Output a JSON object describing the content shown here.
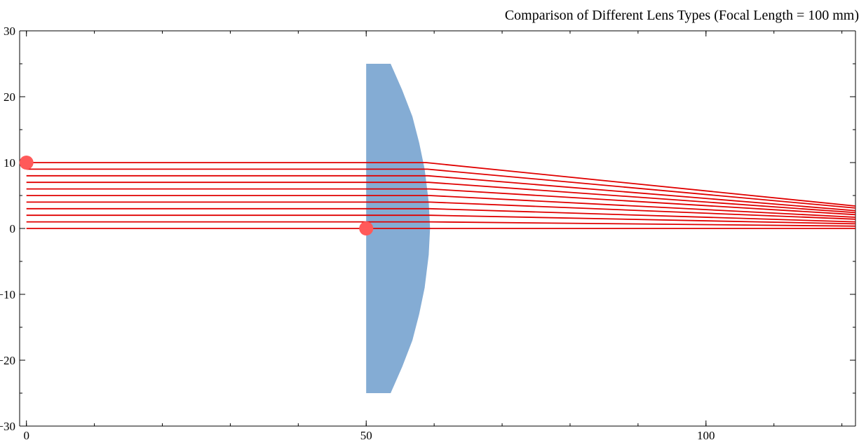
{
  "chart_data": {
    "type": "line",
    "title": "Comparison of Different Lens Types (Focal Length = 100 mm)",
    "xlim": [
      -1,
      122
    ],
    "ylim": [
      -30,
      30
    ],
    "x_ticks": [
      0,
      50,
      100
    ],
    "y_ticks": [
      30,
      20,
      10,
      0,
      -10,
      -20,
      -30
    ],
    "x_minor_step": 10,
    "y_minor_step": 5,
    "grid": false,
    "lens": {
      "color": "#84acd4",
      "outline": [
        [
          50,
          25
        ],
        [
          53.6,
          25
        ],
        [
          55.3,
          21
        ],
        [
          56.8,
          17
        ],
        [
          57.8,
          13
        ],
        [
          58.6,
          9
        ],
        [
          59.2,
          4
        ],
        [
          59.4,
          0
        ],
        [
          59.2,
          -4
        ],
        [
          58.6,
          -9
        ],
        [
          57.8,
          -13
        ],
        [
          56.8,
          -17
        ],
        [
          55.3,
          -21
        ],
        [
          53.6,
          -25
        ],
        [
          50,
          -25
        ]
      ]
    },
    "rays": {
      "color": "#e00000",
      "series": [
        {
          "values": [
            [
              0,
              10
            ],
            [
              58.8,
              10
            ],
            [
              122,
              3.4
            ]
          ]
        },
        {
          "values": [
            [
              0,
              9
            ],
            [
              59.0,
              9
            ],
            [
              122,
              3.1
            ]
          ]
        },
        {
          "values": [
            [
              0,
              8
            ],
            [
              59.1,
              8
            ],
            [
              122,
              2.7
            ]
          ]
        },
        {
          "values": [
            [
              0,
              7
            ],
            [
              59.2,
              7
            ],
            [
              122,
              2.4
            ]
          ]
        },
        {
          "values": [
            [
              0,
              6
            ],
            [
              59.3,
              6
            ],
            [
              122,
              2.1
            ]
          ]
        },
        {
          "values": [
            [
              0,
              5
            ],
            [
              59.3,
              5
            ],
            [
              122,
              1.7
            ]
          ]
        },
        {
          "values": [
            [
              0,
              4
            ],
            [
              59.4,
              4
            ],
            [
              122,
              1.4
            ]
          ]
        },
        {
          "values": [
            [
              0,
              3
            ],
            [
              59.4,
              3
            ],
            [
              122,
              1.0
            ]
          ]
        },
        {
          "values": [
            [
              0,
              2
            ],
            [
              59.4,
              2
            ],
            [
              122,
              0.7
            ]
          ]
        },
        {
          "values": [
            [
              0,
              1
            ],
            [
              59.4,
              1
            ],
            [
              122,
              0.35
            ]
          ]
        },
        {
          "values": [
            [
              0,
              0
            ],
            [
              59.4,
              0
            ],
            [
              122,
              0
            ]
          ]
        }
      ]
    },
    "markers": {
      "color": "#ff5a5a",
      "points": [
        [
          0,
          10
        ],
        [
          50,
          0
        ]
      ]
    }
  }
}
